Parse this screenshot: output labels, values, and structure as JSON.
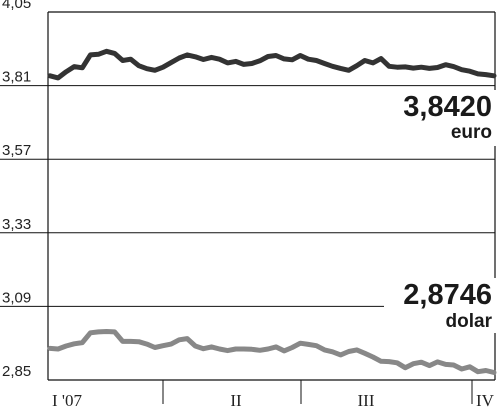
{
  "chart_data": {
    "type": "line",
    "title": "",
    "xlabel": "",
    "ylabel": "",
    "ylim": [
      2.85,
      4.05
    ],
    "y_ticks": [
      "4,05",
      "3,81",
      "3,57",
      "3,33",
      "3,09",
      "2,85"
    ],
    "y_tick_values": [
      4.05,
      3.81,
      3.57,
      3.33,
      3.09,
      2.85
    ],
    "x_period_labels": [
      "I '07",
      "II",
      "III",
      "IV"
    ],
    "grid": "horizontal",
    "series": [
      {
        "name": "euro",
        "last_value_label": "3,8420",
        "color": "#333333",
        "values": [
          3.842,
          3.835,
          3.855,
          3.872,
          3.868,
          3.91,
          3.912,
          3.922,
          3.915,
          3.892,
          3.896,
          3.875,
          3.865,
          3.86,
          3.87,
          3.885,
          3.9,
          3.91,
          3.904,
          3.895,
          3.902,
          3.896,
          3.884,
          3.889,
          3.879,
          3.882,
          3.891,
          3.905,
          3.908,
          3.897,
          3.894,
          3.908,
          3.896,
          3.892,
          3.882,
          3.873,
          3.866,
          3.86,
          3.875,
          3.892,
          3.884,
          3.898,
          3.873,
          3.87,
          3.871,
          3.867,
          3.87,
          3.866,
          3.869,
          3.878,
          3.872,
          3.862,
          3.857,
          3.848,
          3.846,
          3.842
        ]
      },
      {
        "name": "dolar",
        "last_value_label": "2,8746",
        "color": "#888888",
        "values": [
          2.953,
          2.951,
          2.961,
          2.968,
          2.972,
          3.004,
          3.007,
          3.008,
          3.007,
          2.976,
          2.976,
          2.975,
          2.967,
          2.956,
          2.962,
          2.967,
          2.981,
          2.985,
          2.961,
          2.952,
          2.958,
          2.951,
          2.946,
          2.951,
          2.951,
          2.95,
          2.947,
          2.951,
          2.958,
          2.945,
          2.956,
          2.97,
          2.966,
          2.962,
          2.948,
          2.942,
          2.932,
          2.943,
          2.948,
          2.937,
          2.925,
          2.911,
          2.91,
          2.906,
          2.89,
          2.903,
          2.908,
          2.897,
          2.909,
          2.901,
          2.899,
          2.886,
          2.893,
          2.877,
          2.881,
          2.8746
        ]
      }
    ]
  }
}
